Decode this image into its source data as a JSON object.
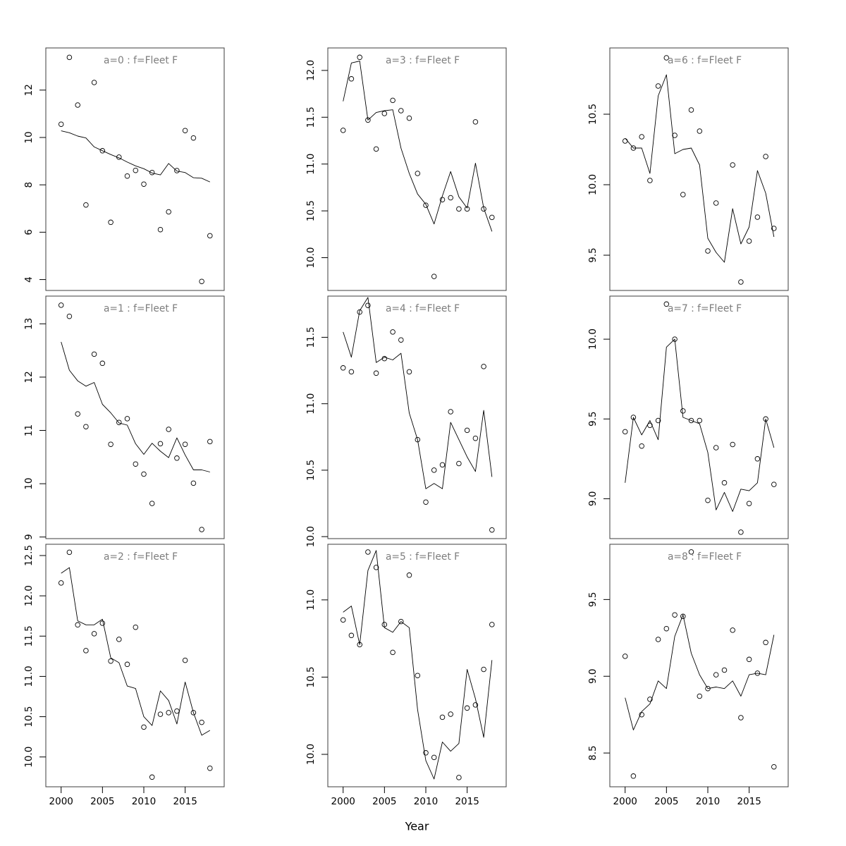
{
  "figure": {
    "xlabel": "Year",
    "xtick_labels": [
      "2000",
      "2005",
      "2010",
      "2015"
    ],
    "xtick_years": [
      2000,
      2005,
      2010,
      2015
    ],
    "years": [
      2000,
      2001,
      2002,
      2003,
      2004,
      2005,
      2006,
      2007,
      2008,
      2009,
      2010,
      2011,
      2012,
      2013,
      2014,
      2015,
      2016,
      2017,
      2018
    ],
    "xlim": [
      1998.15,
      2019.72
    ],
    "colors": {
      "points_and_line": "#000000",
      "panel_border": "#3c3c3c",
      "title_text": "#7d7d7d",
      "tick_text": "#000000"
    }
  },
  "chart_data": [
    {
      "type": "scatter",
      "panel_label": "a=0",
      "fleet": "Fleet F",
      "title": "a=0 : f=Fleet F",
      "ylim": [
        3.54,
        13.78
      ],
      "ytick_values": [
        4,
        6,
        8,
        10,
        12
      ],
      "ytick_labels": [
        "4",
        "6",
        "8",
        "10",
        "12"
      ],
      "points": [
        10.56,
        13.38,
        11.37,
        7.15,
        12.32,
        9.44,
        6.42,
        9.17,
        8.37,
        8.61,
        8.03,
        8.52,
        6.11,
        6.86,
        8.6,
        10.29,
        9.98,
        3.92,
        5.85
      ],
      "line": [
        10.28,
        10.2,
        10.06,
        9.98,
        9.6,
        9.44,
        9.28,
        9.14,
        8.96,
        8.8,
        8.68,
        8.5,
        8.42,
        8.9,
        8.58,
        8.52,
        8.3,
        8.28,
        8.12
      ]
    },
    {
      "type": "scatter",
      "panel_label": "a=1",
      "fleet": "Fleet F",
      "title": "a=1 : f=Fleet F",
      "ylim": [
        8.97,
        13.52
      ],
      "ytick_values": [
        9,
        10,
        11,
        12,
        13
      ],
      "ytick_labels": [
        "9",
        "10",
        "11",
        "12",
        "13"
      ],
      "points": [
        13.35,
        13.14,
        11.31,
        11.07,
        12.43,
        12.26,
        10.74,
        11.15,
        11.22,
        10.37,
        10.18,
        9.63,
        10.75,
        11.02,
        10.48,
        10.74,
        10.01,
        9.14,
        10.79
      ],
      "line": [
        12.66,
        12.13,
        11.93,
        11.83,
        11.9,
        11.49,
        11.33,
        11.14,
        11.1,
        10.75,
        10.55,
        10.76,
        10.61,
        10.49,
        10.86,
        10.54,
        10.26,
        10.26,
        10.22
      ]
    },
    {
      "type": "scatter",
      "panel_label": "a=2",
      "fleet": "Fleet F",
      "title": "a=2 : f=Fleet F",
      "ylim": [
        9.63,
        12.64
      ],
      "ytick_values": [
        10,
        10.5,
        11,
        11.5,
        12,
        12.5
      ],
      "ytick_labels": [
        "10.0",
        "10.5",
        "11.0",
        "11.5",
        "12.0",
        "12.5"
      ],
      "points": [
        12.16,
        12.54,
        11.64,
        11.32,
        11.53,
        11.66,
        11.19,
        11.46,
        11.15,
        11.61,
        10.37,
        9.75,
        10.53,
        10.55,
        10.57,
        11.2,
        10.55,
        10.43,
        9.86
      ],
      "line": [
        12.28,
        12.35,
        11.69,
        11.64,
        11.64,
        11.71,
        11.23,
        11.17,
        10.88,
        10.85,
        10.5,
        10.39,
        10.82,
        10.7,
        10.41,
        10.93,
        10.55,
        10.27,
        10.33
      ]
    },
    {
      "type": "scatter",
      "panel_label": "a=3",
      "fleet": "Fleet F",
      "title": "a=3 : f=Fleet F",
      "ylim": [
        9.65,
        12.24
      ],
      "ytick_values": [
        10,
        10.5,
        11,
        11.5,
        12
      ],
      "ytick_labels": [
        "10.0",
        "10.5",
        "11.0",
        "11.5",
        "12.0"
      ],
      "points": [
        11.36,
        11.91,
        12.14,
        11.47,
        11.16,
        11.54,
        11.68,
        11.57,
        11.49,
        10.9,
        10.56,
        9.8,
        10.62,
        10.64,
        10.52,
        10.52,
        11.45,
        10.52,
        10.43
      ],
      "line": [
        11.67,
        12.08,
        12.1,
        11.47,
        11.55,
        11.57,
        11.58,
        11.17,
        10.9,
        10.68,
        10.57,
        10.36,
        10.66,
        10.92,
        10.65,
        10.53,
        11.01,
        10.53,
        10.28
      ]
    },
    {
      "type": "scatter",
      "panel_label": "a=4",
      "fleet": "Fleet F",
      "title": "a=4 : f=Fleet F",
      "ylim": [
        9.985,
        11.81
      ],
      "ytick_values": [
        10,
        10.5,
        11,
        11.5
      ],
      "ytick_labels": [
        "10.0",
        "10.5",
        "11.0",
        "11.5"
      ],
      "points": [
        11.27,
        11.24,
        11.69,
        11.74,
        11.23,
        11.34,
        11.54,
        11.48,
        11.24,
        10.73,
        10.26,
        10.5,
        10.54,
        10.94,
        10.55,
        10.8,
        10.74,
        11.28,
        10.05
      ],
      "line": [
        11.54,
        11.35,
        11.7,
        11.8,
        11.31,
        11.35,
        11.33,
        11.38,
        10.93,
        10.73,
        10.36,
        10.4,
        10.36,
        10.86,
        10.73,
        10.6,
        10.49,
        10.95,
        10.45
      ]
    },
    {
      "type": "scatter",
      "panel_label": "a=5",
      "fleet": "Fleet F",
      "title": "a=5 : f=Fleet F",
      "ylim": [
        9.79,
        11.36
      ],
      "ytick_values": [
        10,
        10.5,
        11
      ],
      "ytick_labels": [
        "10.0",
        "10.5",
        "11.0"
      ],
      "points": [
        10.87,
        10.77,
        10.71,
        11.31,
        11.21,
        10.84,
        10.66,
        10.86,
        11.16,
        10.51,
        10.01,
        9.98,
        10.24,
        10.26,
        9.85,
        10.3,
        10.32,
        10.55,
        10.84
      ],
      "line": [
        10.92,
        10.96,
        10.71,
        11.19,
        11.32,
        10.82,
        10.79,
        10.86,
        10.82,
        10.29,
        9.96,
        9.84,
        10.08,
        10.02,
        10.07,
        10.55,
        10.36,
        10.11,
        10.61
      ]
    },
    {
      "type": "scatter",
      "panel_label": "a=6",
      "fleet": "Fleet F",
      "title": "a=6 : f=Fleet F",
      "ylim": [
        9.25,
        10.97
      ],
      "ytick_values": [
        9.5,
        10,
        10.5
      ],
      "ytick_labels": [
        "9.5",
        "10.0",
        "10.5"
      ],
      "points": [
        10.31,
        10.26,
        10.34,
        10.03,
        10.7,
        10.9,
        10.35,
        9.93,
        10.53,
        10.38,
        9.53,
        9.87,
        null,
        10.14,
        9.31,
        9.6,
        9.77,
        10.2,
        9.69
      ],
      "line": [
        10.33,
        10.26,
        10.26,
        10.08,
        10.63,
        10.78,
        10.22,
        10.25,
        10.26,
        10.14,
        9.62,
        9.52,
        9.45,
        9.83,
        9.58,
        9.7,
        10.1,
        9.94,
        9.63
      ]
    },
    {
      "type": "scatter",
      "panel_label": "a=7",
      "fleet": "Fleet F",
      "title": "a=7 : f=Fleet F",
      "ylim": [
        8.75,
        10.27
      ],
      "ytick_values": [
        9,
        9.5,
        10
      ],
      "ytick_labels": [
        "9.0",
        "9.5",
        "10.0"
      ],
      "points": [
        9.42,
        9.51,
        9.33,
        9.46,
        9.49,
        10.22,
        10.0,
        9.55,
        9.49,
        9.49,
        8.99,
        9.32,
        9.1,
        9.34,
        8.79,
        8.97,
        9.25,
        9.5,
        9.09
      ],
      "line": [
        9.1,
        9.51,
        9.4,
        9.49,
        9.37,
        9.95,
        10.0,
        9.51,
        9.49,
        9.47,
        9.29,
        8.93,
        9.04,
        8.92,
        9.06,
        9.05,
        9.1,
        9.5,
        9.32
      ]
    },
    {
      "type": "scatter",
      "panel_label": "a=8",
      "fleet": "Fleet F",
      "title": "a=8 : f=Fleet F",
      "ylim": [
        8.28,
        9.86
      ],
      "ytick_values": [
        8.5,
        9,
        9.5
      ],
      "ytick_labels": [
        "8.5",
        "9.0",
        "9.5"
      ],
      "points": [
        9.13,
        8.35,
        8.75,
        8.85,
        9.24,
        9.31,
        9.4,
        9.39,
        9.81,
        8.87,
        8.92,
        9.01,
        9.04,
        9.3,
        8.73,
        9.11,
        9.02,
        9.22,
        8.41
      ],
      "line": [
        8.86,
        8.65,
        8.77,
        8.82,
        8.97,
        8.92,
        9.26,
        9.4,
        9.15,
        9.01,
        8.92,
        8.93,
        8.92,
        8.97,
        8.87,
        9.01,
        9.02,
        9.01,
        9.27
      ]
    }
  ]
}
